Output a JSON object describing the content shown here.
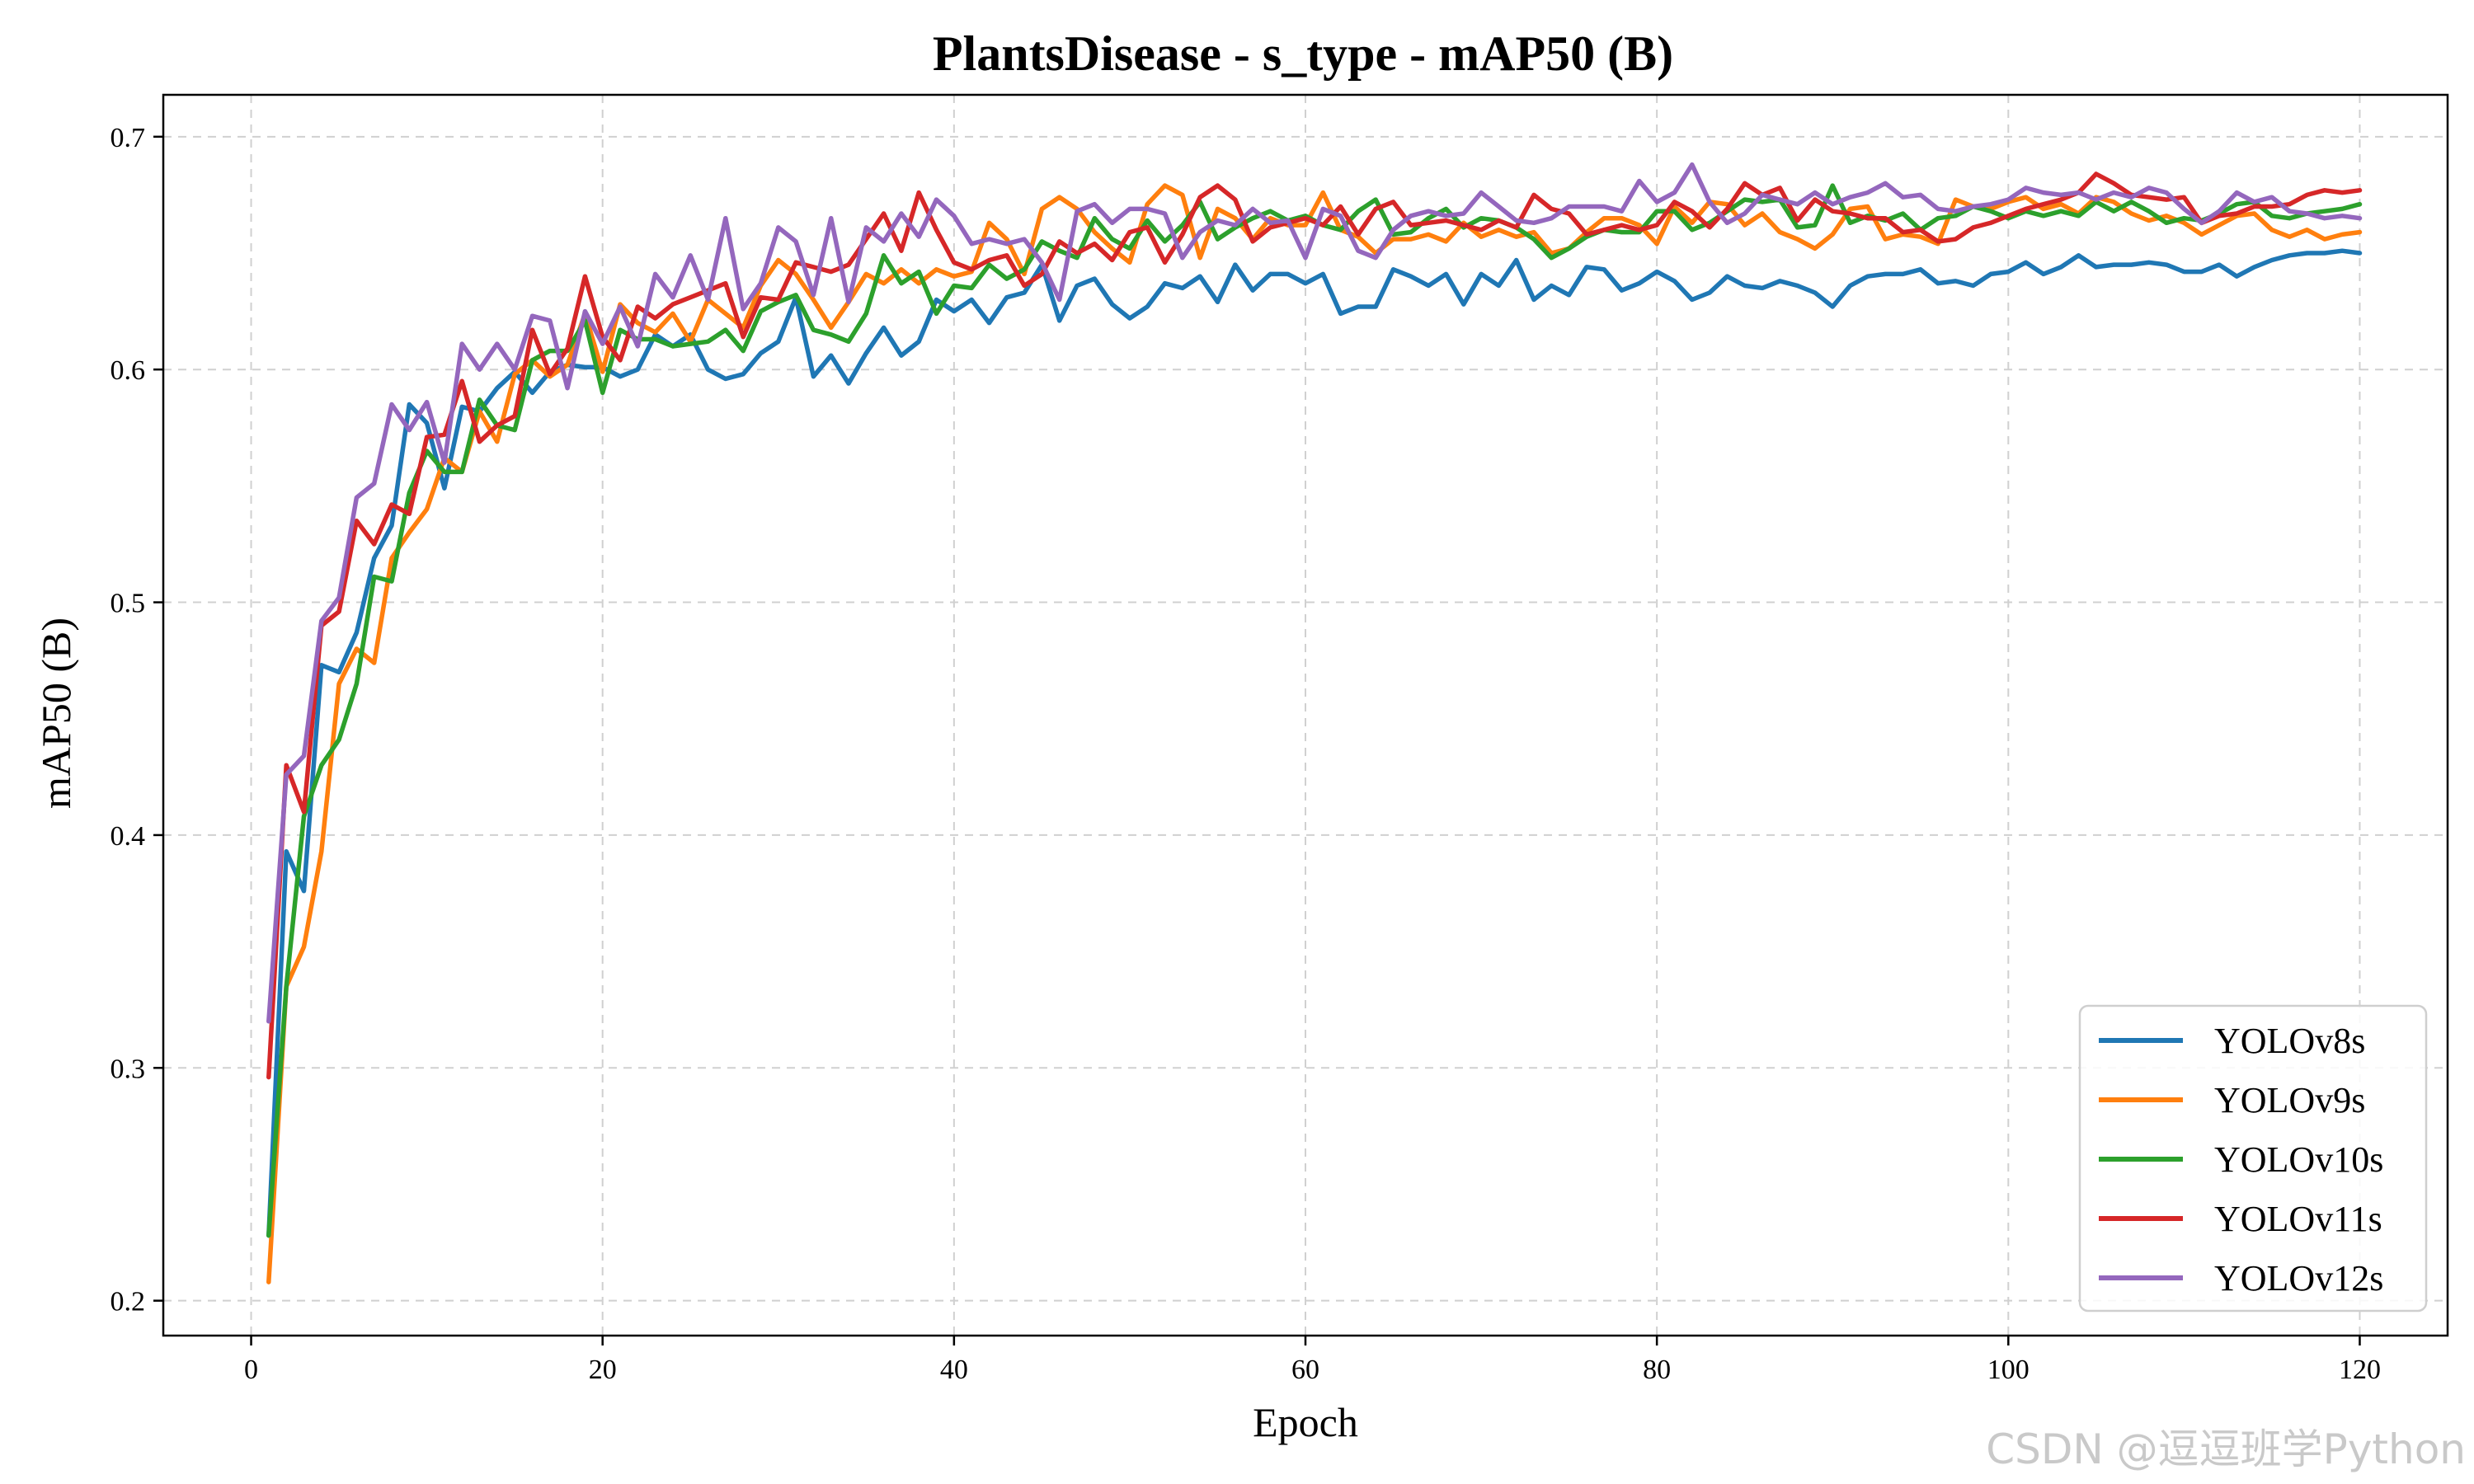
{
  "chart_data": {
    "type": "line",
    "title": "PlantsDisease - s_type - mAP50 (B)",
    "xlabel": "Epoch",
    "ylabel": "mAP50 (B)",
    "xlim": [
      -5,
      125
    ],
    "ylim": [
      0.185,
      0.718
    ],
    "xticks": [
      0,
      20,
      40,
      60,
      80,
      100,
      120
    ],
    "yticks": [
      0.2,
      0.3,
      0.4,
      0.5,
      0.6,
      0.7
    ],
    "ytick_labels": [
      "0.2",
      "0.3",
      "0.4",
      "0.5",
      "0.6",
      "0.7"
    ],
    "grid": true,
    "legend_position": "lower-right",
    "x": [
      1,
      2,
      3,
      4,
      5,
      6,
      7,
      8,
      9,
      10,
      11,
      12,
      13,
      14,
      15,
      16,
      17,
      18,
      19,
      20,
      21,
      22,
      23,
      24,
      25,
      26,
      27,
      28,
      29,
      30,
      31,
      32,
      33,
      34,
      35,
      36,
      37,
      38,
      39,
      40,
      41,
      42,
      43,
      44,
      45,
      46,
      47,
      48,
      49,
      50,
      51,
      52,
      53,
      54,
      55,
      56,
      57,
      58,
      59,
      60,
      61,
      62,
      63,
      64,
      65,
      66,
      67,
      68,
      69,
      70,
      71,
      72,
      73,
      74,
      75,
      76,
      77,
      78,
      79,
      80,
      81,
      82,
      83,
      84,
      85,
      86,
      87,
      88,
      89,
      90,
      91,
      92,
      93,
      94,
      95,
      96,
      97,
      98,
      99,
      100,
      101,
      102,
      103,
      104,
      105,
      106,
      107,
      108,
      109,
      110,
      111,
      112,
      113,
      114,
      115,
      116,
      117,
      118,
      119,
      120
    ],
    "series": [
      {
        "name": "YOLOv8s",
        "color": "#1f77b4",
        "values": [
          0.228,
          0.393,
          0.376,
          0.473,
          0.47,
          0.487,
          0.519,
          0.533,
          0.585,
          0.577,
          0.549,
          0.584,
          0.582,
          0.592,
          0.599,
          0.59,
          0.599,
          0.602,
          0.601,
          0.601,
          0.597,
          0.6,
          0.615,
          0.61,
          0.615,
          0.6,
          0.596,
          0.598,
          0.607,
          0.612,
          0.631,
          0.597,
          0.606,
          0.594,
          0.607,
          0.618,
          0.606,
          0.612,
          0.63,
          0.625,
          0.63,
          0.62,
          0.631,
          0.633,
          0.645,
          0.621,
          0.636,
          0.639,
          0.628,
          0.622,
          0.627,
          0.637,
          0.635,
          0.64,
          0.629,
          0.645,
          0.634,
          0.641,
          0.641,
          0.637,
          0.641,
          0.624,
          0.627,
          0.627,
          0.643,
          0.64,
          0.636,
          0.641,
          0.628,
          0.641,
          0.636,
          0.647,
          0.63,
          0.636,
          0.632,
          0.644,
          0.643,
          0.634,
          0.637,
          0.642,
          0.638,
          0.63,
          0.633,
          0.64,
          0.636,
          0.635,
          0.638,
          0.636,
          0.633,
          0.627,
          0.636,
          0.64,
          0.641,
          0.641,
          0.643,
          0.637,
          0.638,
          0.636,
          0.641,
          0.642,
          0.646,
          0.641,
          0.644,
          0.649,
          0.644,
          0.645,
          0.645,
          0.646,
          0.645,
          0.642,
          0.642,
          0.645,
          0.64,
          0.644,
          0.647,
          0.649,
          0.65,
          0.65,
          0.651,
          0.65
        ]
      },
      {
        "name": "YOLOv9s",
        "color": "#ff7f0e",
        "values": [
          0.208,
          0.335,
          0.352,
          0.393,
          0.465,
          0.48,
          0.474,
          0.519,
          0.53,
          0.54,
          0.562,
          0.556,
          0.582,
          0.569,
          0.598,
          0.604,
          0.597,
          0.602,
          0.624,
          0.599,
          0.628,
          0.62,
          0.616,
          0.624,
          0.612,
          0.63,
          0.624,
          0.618,
          0.636,
          0.647,
          0.641,
          0.63,
          0.618,
          0.629,
          0.641,
          0.637,
          0.643,
          0.637,
          0.643,
          0.64,
          0.642,
          0.663,
          0.656,
          0.641,
          0.669,
          0.674,
          0.669,
          0.659,
          0.652,
          0.646,
          0.671,
          0.679,
          0.675,
          0.648,
          0.669,
          0.665,
          0.656,
          0.665,
          0.662,
          0.662,
          0.676,
          0.66,
          0.657,
          0.65,
          0.656,
          0.656,
          0.658,
          0.655,
          0.663,
          0.657,
          0.66,
          0.657,
          0.659,
          0.65,
          0.652,
          0.659,
          0.665,
          0.665,
          0.662,
          0.654,
          0.67,
          0.663,
          0.672,
          0.671,
          0.662,
          0.667,
          0.659,
          0.656,
          0.652,
          0.658,
          0.669,
          0.67,
          0.656,
          0.658,
          0.657,
          0.654,
          0.673,
          0.67,
          0.669,
          0.672,
          0.674,
          0.669,
          0.671,
          0.667,
          0.674,
          0.672,
          0.667,
          0.664,
          0.666,
          0.663,
          0.658,
          0.662,
          0.666,
          0.667,
          0.66,
          0.657,
          0.66,
          0.656,
          0.658,
          0.659
        ]
      },
      {
        "name": "YOLOv10s",
        "color": "#2ca02c",
        "values": [
          0.228,
          0.335,
          0.408,
          0.43,
          0.441,
          0.465,
          0.511,
          0.509,
          0.547,
          0.565,
          0.556,
          0.556,
          0.587,
          0.576,
          0.574,
          0.604,
          0.608,
          0.608,
          0.621,
          0.59,
          0.617,
          0.613,
          0.613,
          0.61,
          0.611,
          0.612,
          0.617,
          0.608,
          0.625,
          0.629,
          0.632,
          0.617,
          0.615,
          0.612,
          0.624,
          0.649,
          0.637,
          0.642,
          0.624,
          0.636,
          0.635,
          0.645,
          0.639,
          0.643,
          0.655,
          0.651,
          0.648,
          0.665,
          0.656,
          0.652,
          0.664,
          0.655,
          0.662,
          0.672,
          0.656,
          0.661,
          0.665,
          0.668,
          0.664,
          0.666,
          0.662,
          0.66,
          0.668,
          0.673,
          0.658,
          0.659,
          0.665,
          0.669,
          0.661,
          0.665,
          0.664,
          0.661,
          0.656,
          0.648,
          0.652,
          0.657,
          0.66,
          0.659,
          0.659,
          0.668,
          0.668,
          0.66,
          0.663,
          0.668,
          0.673,
          0.672,
          0.673,
          0.661,
          0.662,
          0.679,
          0.663,
          0.666,
          0.664,
          0.667,
          0.66,
          0.665,
          0.666,
          0.67,
          0.668,
          0.665,
          0.668,
          0.666,
          0.668,
          0.666,
          0.672,
          0.668,
          0.672,
          0.668,
          0.663,
          0.665,
          0.664,
          0.667,
          0.671,
          0.672,
          0.666,
          0.665,
          0.667,
          0.668,
          0.669,
          0.671
        ]
      },
      {
        "name": "YOLOv11s",
        "color": "#d62728",
        "values": [
          0.296,
          0.43,
          0.41,
          0.49,
          0.496,
          0.535,
          0.525,
          0.542,
          0.538,
          0.571,
          0.572,
          0.595,
          0.569,
          0.576,
          0.58,
          0.617,
          0.598,
          0.609,
          0.64,
          0.614,
          0.604,
          0.627,
          0.622,
          0.628,
          0.631,
          0.634,
          0.637,
          0.614,
          0.631,
          0.63,
          0.646,
          0.644,
          0.642,
          0.645,
          0.656,
          0.667,
          0.651,
          0.676,
          0.66,
          0.646,
          0.643,
          0.647,
          0.649,
          0.636,
          0.641,
          0.655,
          0.65,
          0.654,
          0.647,
          0.659,
          0.661,
          0.646,
          0.658,
          0.674,
          0.679,
          0.673,
          0.655,
          0.661,
          0.663,
          0.665,
          0.662,
          0.67,
          0.658,
          0.669,
          0.672,
          0.662,
          0.663,
          0.664,
          0.662,
          0.66,
          0.664,
          0.661,
          0.675,
          0.669,
          0.667,
          0.658,
          0.66,
          0.662,
          0.66,
          0.662,
          0.672,
          0.668,
          0.661,
          0.669,
          0.68,
          0.675,
          0.678,
          0.664,
          0.673,
          0.668,
          0.667,
          0.665,
          0.665,
          0.659,
          0.66,
          0.655,
          0.656,
          0.661,
          0.663,
          0.666,
          0.669,
          0.671,
          0.673,
          0.676,
          0.684,
          0.68,
          0.675,
          0.674,
          0.673,
          0.674,
          0.663,
          0.666,
          0.667,
          0.67,
          0.67,
          0.671,
          0.675,
          0.677,
          0.676,
          0.677
        ]
      },
      {
        "name": "YOLOv12s",
        "color": "#9467bd",
        "values": [
          0.32,
          0.426,
          0.434,
          0.492,
          0.502,
          0.545,
          0.551,
          0.585,
          0.574,
          0.586,
          0.56,
          0.611,
          0.6,
          0.611,
          0.6,
          0.623,
          0.621,
          0.592,
          0.625,
          0.611,
          0.627,
          0.61,
          0.641,
          0.631,
          0.649,
          0.63,
          0.665,
          0.626,
          0.637,
          0.661,
          0.655,
          0.632,
          0.665,
          0.629,
          0.661,
          0.655,
          0.667,
          0.657,
          0.673,
          0.666,
          0.654,
          0.656,
          0.654,
          0.656,
          0.646,
          0.63,
          0.668,
          0.671,
          0.663,
          0.669,
          0.669,
          0.667,
          0.648,
          0.659,
          0.664,
          0.662,
          0.669,
          0.663,
          0.664,
          0.648,
          0.669,
          0.666,
          0.651,
          0.648,
          0.66,
          0.666,
          0.668,
          0.666,
          0.667,
          0.676,
          0.67,
          0.664,
          0.663,
          0.665,
          0.67,
          0.67,
          0.67,
          0.668,
          0.681,
          0.672,
          0.676,
          0.688,
          0.672,
          0.663,
          0.667,
          0.675,
          0.673,
          0.671,
          0.676,
          0.671,
          0.674,
          0.676,
          0.68,
          0.674,
          0.675,
          0.669,
          0.668,
          0.67,
          0.671,
          0.673,
          0.678,
          0.676,
          0.675,
          0.676,
          0.673,
          0.676,
          0.674,
          0.678,
          0.676,
          0.669,
          0.663,
          0.668,
          0.676,
          0.672,
          0.674,
          0.668,
          0.667,
          0.665,
          0.666,
          0.665
        ]
      }
    ]
  },
  "watermark": "CSDN @逗逗班学Python"
}
